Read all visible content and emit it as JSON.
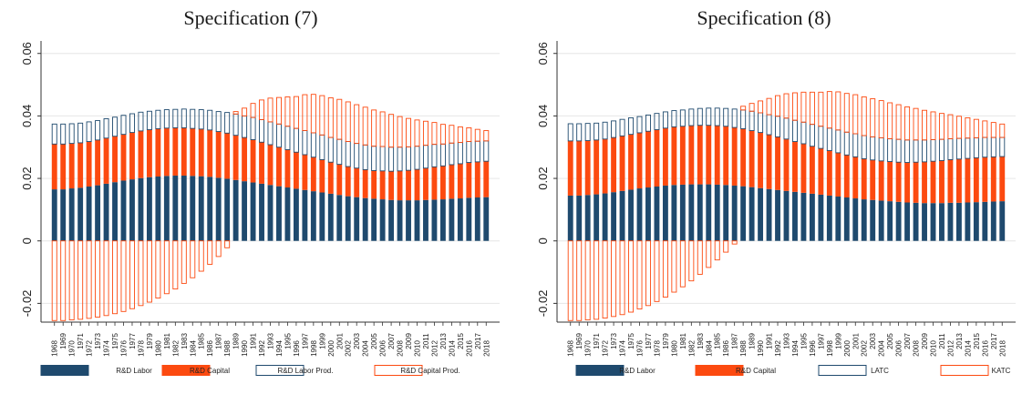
{
  "colors": {
    "labor": "#1f4a6e",
    "capital": "#fc4a10",
    "labor_prod_edge": "#1f4a6e",
    "capital_prod_edge": "#fc4a10",
    "grid": "#e6e6e6"
  },
  "chart_data": [
    {
      "type": "bar",
      "title": "Specification (7)",
      "xlabel": "",
      "ylabel": "",
      "ylim": [
        -0.026,
        0.064
      ],
      "yticks": [
        -0.02,
        0,
        0.02,
        0.04,
        0.06
      ],
      "ytick_labels": [
        "-0.02",
        "0",
        "0.02",
        "0.04",
        "0.06"
      ],
      "grid": true,
      "legend_position": "bottom",
      "categories": [
        "1968",
        "1969",
        "1970",
        "1971",
        "1972",
        "1973",
        "1974",
        "1975",
        "1976",
        "1977",
        "1978",
        "1979",
        "1980",
        "1981",
        "1982",
        "1983",
        "1984",
        "1985",
        "1986",
        "1987",
        "1988",
        "1989",
        "1990",
        "1991",
        "1992",
        "1993",
        "1994",
        "1995",
        "1996",
        "1997",
        "1998",
        "1999",
        "2000",
        "2001",
        "2002",
        "2003",
        "2004",
        "2005",
        "2006",
        "2007",
        "2008",
        "2009",
        "2010",
        "2011",
        "2012",
        "2013",
        "2014",
        "2015",
        "2016",
        "2017",
        "2018"
      ],
      "series": [
        {
          "name": "R&D Labor",
          "style": "filled",
          "color": "#1f4a6e",
          "values": [
            0.0165,
            0.0165,
            0.0168,
            0.017,
            0.0174,
            0.0178,
            0.0183,
            0.0188,
            0.0193,
            0.0197,
            0.0201,
            0.0204,
            0.0206,
            0.0208,
            0.0209,
            0.0209,
            0.0208,
            0.0207,
            0.0205,
            0.0202,
            0.0199,
            0.0195,
            0.0191,
            0.0187,
            0.0183,
            0.0179,
            0.0175,
            0.0171,
            0.0167,
            0.0163,
            0.0159,
            0.0155,
            0.0151,
            0.0147,
            0.0143,
            0.014,
            0.0137,
            0.0135,
            0.0133,
            0.0131,
            0.013,
            0.013,
            0.013,
            0.0131,
            0.0132,
            0.0133,
            0.0135,
            0.0136,
            0.0138,
            0.0139,
            0.014
          ]
        },
        {
          "name": "R&D Capital",
          "style": "filled",
          "color": "#fc4a10",
          "values": [
            0.0145,
            0.0145,
            0.0144,
            0.0144,
            0.0144,
            0.0145,
            0.0146,
            0.0147,
            0.0148,
            0.015,
            0.0151,
            0.0152,
            0.0153,
            0.0153,
            0.0153,
            0.0153,
            0.0152,
            0.0151,
            0.015,
            0.0148,
            0.0146,
            0.0143,
            0.014,
            0.0137,
            0.0133,
            0.0129,
            0.0125,
            0.0121,
            0.0117,
            0.0113,
            0.0109,
            0.0105,
            0.0101,
            0.0098,
            0.0095,
            0.0093,
            0.0091,
            0.009,
            0.0091,
            0.0092,
            0.0094,
            0.0096,
            0.0099,
            0.0102,
            0.0105,
            0.0107,
            0.0109,
            0.0111,
            0.0113,
            0.0114,
            0.0115
          ]
        },
        {
          "name": "R&D Labor Prod.",
          "style": "outline",
          "color": "#1f4a6e",
          "values": [
            0.0064,
            0.0064,
            0.0063,
            0.0063,
            0.0063,
            0.0062,
            0.0062,
            0.0061,
            0.0061,
            0.006,
            0.006,
            0.0059,
            0.0059,
            0.0059,
            0.0059,
            0.006,
            0.0061,
            0.0062,
            0.0063,
            0.0064,
            0.0066,
            0.0068,
            0.0069,
            0.0071,
            0.0072,
            0.0073,
            0.0074,
            0.0075,
            0.0076,
            0.0077,
            0.0078,
            0.0079,
            0.0079,
            0.008,
            0.008,
            0.0079,
            0.0079,
            0.0078,
            0.0078,
            0.0077,
            0.0076,
            0.0075,
            0.0074,
            0.0073,
            0.0072,
            0.007,
            0.0069,
            0.0068,
            0.0067,
            0.0066,
            0.0065
          ]
        },
        {
          "name": "R&D Capital Prod.",
          "style": "outline",
          "color": "#fc4a10",
          "values": [
            -0.0255,
            -0.0255,
            -0.0253,
            -0.0251,
            -0.0248,
            -0.0244,
            -0.0239,
            -0.0233,
            -0.0226,
            -0.0217,
            -0.0207,
            -0.0196,
            -0.0183,
            -0.0169,
            -0.0154,
            -0.0136,
            -0.0118,
            -0.0097,
            -0.0075,
            -0.005,
            -0.0022,
            0.0008,
            0.0025,
            0.0045,
            0.0063,
            0.0076,
            0.0085,
            0.0094,
            0.0102,
            0.0115,
            0.0123,
            0.0126,
            0.0127,
            0.0128,
            0.0127,
            0.0124,
            0.0121,
            0.0116,
            0.0111,
            0.0105,
            0.0098,
            0.0091,
            0.0084,
            0.0077,
            0.007,
            0.0063,
            0.0057,
            0.005,
            0.0044,
            0.0038,
            0.0033
          ]
        }
      ]
    },
    {
      "type": "bar",
      "title": "Specification (8)",
      "xlabel": "",
      "ylabel": "",
      "ylim": [
        -0.026,
        0.064
      ],
      "yticks": [
        -0.02,
        0,
        0.02,
        0.04,
        0.06
      ],
      "ytick_labels": [
        "-0.02",
        "0",
        "0.02",
        "0.04",
        "0.06"
      ],
      "grid": true,
      "legend_position": "bottom",
      "categories": [
        "1968",
        "1969",
        "1970",
        "1971",
        "1972",
        "1973",
        "1974",
        "1975",
        "1976",
        "1977",
        "1978",
        "1979",
        "1980",
        "1981",
        "1982",
        "1983",
        "1984",
        "1985",
        "1986",
        "1987",
        "1988",
        "1989",
        "1990",
        "1991",
        "1992",
        "1993",
        "1994",
        "1995",
        "1996",
        "1997",
        "1998",
        "1999",
        "2000",
        "2001",
        "2002",
        "2003",
        "2004",
        "2005",
        "2006",
        "2007",
        "2008",
        "2009",
        "2010",
        "2011",
        "2012",
        "2013",
        "2014",
        "2015",
        "2016",
        "2017",
        "2018"
      ],
      "series": [
        {
          "name": "R&D Labor",
          "style": "filled",
          "color": "#1f4a6e",
          "values": [
            0.0145,
            0.0145,
            0.0147,
            0.0149,
            0.0152,
            0.0156,
            0.016,
            0.0164,
            0.0168,
            0.0171,
            0.0174,
            0.0177,
            0.0179,
            0.018,
            0.0181,
            0.0181,
            0.0181,
            0.018,
            0.0179,
            0.0177,
            0.0175,
            0.0172,
            0.0169,
            0.0166,
            0.0163,
            0.016,
            0.0157,
            0.0154,
            0.0151,
            0.0148,
            0.0145,
            0.0142,
            0.0139,
            0.0136,
            0.0133,
            0.0131,
            0.0129,
            0.0127,
            0.0125,
            0.0123,
            0.0122,
            0.0121,
            0.0121,
            0.0121,
            0.0122,
            0.0122,
            0.0123,
            0.0124,
            0.0125,
            0.0126,
            0.0127
          ]
        },
        {
          "name": "R&D Capital",
          "style": "filled",
          "color": "#fc4a10",
          "values": [
            0.0175,
            0.0175,
            0.0174,
            0.0174,
            0.0174,
            0.0175,
            0.0176,
            0.0177,
            0.0178,
            0.018,
            0.0182,
            0.0184,
            0.0186,
            0.0187,
            0.0188,
            0.0189,
            0.0189,
            0.0189,
            0.0188,
            0.0186,
            0.0184,
            0.0181,
            0.0178,
            0.0174,
            0.017,
            0.0166,
            0.0161,
            0.0157,
            0.0152,
            0.0148,
            0.0144,
            0.014,
            0.0136,
            0.0133,
            0.013,
            0.0128,
            0.0127,
            0.0127,
            0.0127,
            0.0128,
            0.013,
            0.0132,
            0.0134,
            0.0136,
            0.0138,
            0.014,
            0.0141,
            0.0142,
            0.0143,
            0.0143,
            0.0143
          ]
        },
        {
          "name": "LATC",
          "style": "outline",
          "color": "#1f4a6e",
          "values": [
            0.0055,
            0.0055,
            0.0055,
            0.0054,
            0.0054,
            0.0053,
            0.0053,
            0.0053,
            0.0052,
            0.0052,
            0.0052,
            0.0052,
            0.0052,
            0.0052,
            0.0053,
            0.0054,
            0.0055,
            0.0056,
            0.0057,
            0.0059,
            0.006,
            0.0062,
            0.0063,
            0.0064,
            0.0066,
            0.0067,
            0.0068,
            0.0069,
            0.007,
            0.0071,
            0.0072,
            0.0073,
            0.0073,
            0.0074,
            0.0074,
            0.0074,
            0.0074,
            0.0073,
            0.0073,
            0.0072,
            0.0071,
            0.007,
            0.0069,
            0.0068,
            0.0067,
            0.0066,
            0.0065,
            0.0064,
            0.0063,
            0.0062,
            0.0061
          ]
        },
        {
          "name": "KATC",
          "style": "outline",
          "color": "#fc4a10",
          "values": [
            -0.0255,
            -0.0255,
            -0.0253,
            -0.0251,
            -0.0247,
            -0.0242,
            -0.0236,
            -0.0228,
            -0.0218,
            -0.0207,
            -0.0194,
            -0.018,
            -0.0164,
            -0.0147,
            -0.0128,
            -0.0107,
            -0.0085,
            -0.0061,
            -0.0036,
            -0.001,
            0.0012,
            0.0025,
            0.0038,
            0.0052,
            0.0066,
            0.0078,
            0.0088,
            0.0096,
            0.0103,
            0.0109,
            0.0117,
            0.0122,
            0.0124,
            0.0125,
            0.0124,
            0.0122,
            0.0119,
            0.0115,
            0.0111,
            0.0106,
            0.0101,
            0.0095,
            0.0089,
            0.0083,
            0.0077,
            0.0071,
            0.0065,
            0.0059,
            0.0053,
            0.0048,
            0.0043
          ]
        }
      ]
    }
  ]
}
